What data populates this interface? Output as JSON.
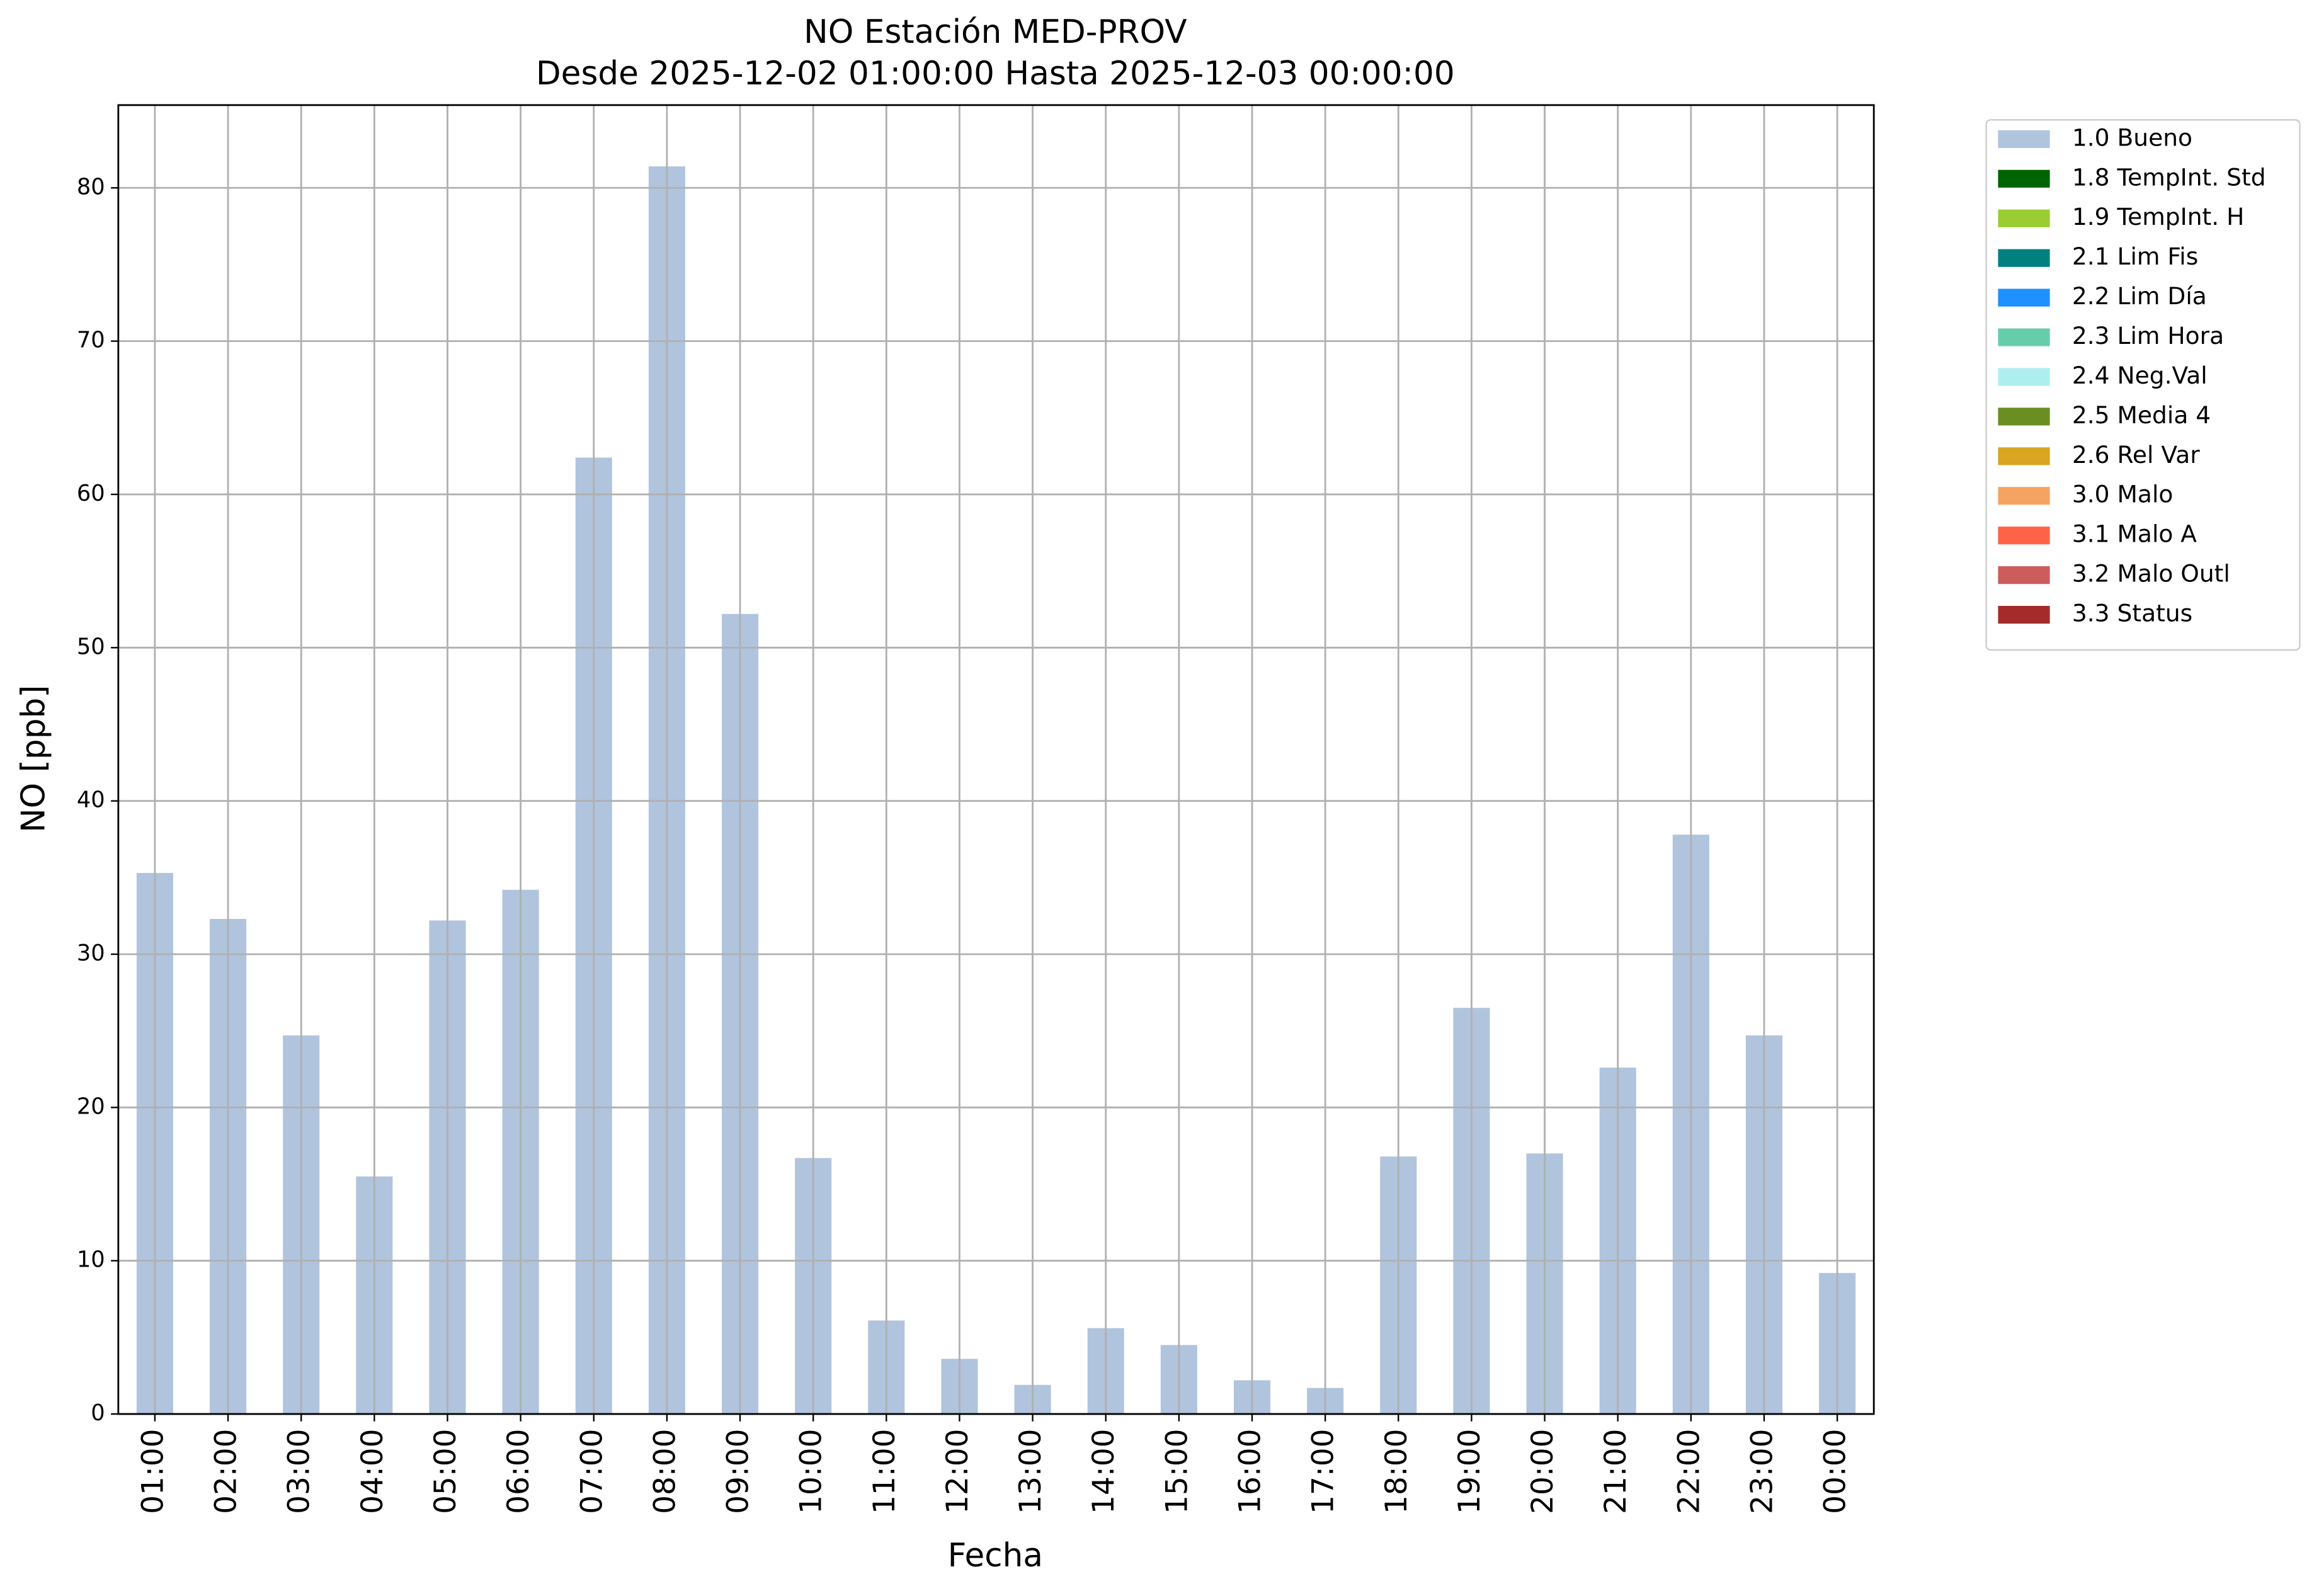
{
  "chart_data": {
    "type": "bar",
    "title": "NO Estación MED-PROV",
    "subtitle": "Desde 2025-12-02 01:00:00 Hasta 2025-12-03 00:00:00",
    "x_label": "Fecha",
    "y_label": "NO [ppb]",
    "categories": [
      "01:00",
      "02:00",
      "03:00",
      "04:00",
      "05:00",
      "06:00",
      "07:00",
      "08:00",
      "09:00",
      "10:00",
      "11:00",
      "12:00",
      "13:00",
      "14:00",
      "15:00",
      "16:00",
      "17:00",
      "18:00",
      "19:00",
      "20:00",
      "21:00",
      "22:00",
      "23:00",
      "00:00"
    ],
    "series": [
      {
        "name": "1.0 Bueno",
        "color": "#b0c4de",
        "values": [
          35.3,
          32.3,
          24.7,
          15.5,
          32.2,
          34.2,
          62.4,
          81.4,
          52.2,
          16.7,
          6.1,
          3.6,
          1.9,
          5.6,
          4.5,
          2.2,
          1.7,
          16.8,
          26.5,
          17.0,
          22.6,
          37.8,
          24.7,
          9.2
        ]
      },
      {
        "name": "1.8 TempInt. Std",
        "color": "#006400"
      },
      {
        "name": "1.9 TempInt. H",
        "color": "#9acd32"
      },
      {
        "name": "2.1 Lim Fis",
        "color": "#008080"
      },
      {
        "name": "2.2 Lim Día",
        "color": "#1e90ff"
      },
      {
        "name": "2.3 Lim Hora",
        "color": "#66cdaa"
      },
      {
        "name": "2.4 Neg.Val",
        "color": "#afeeee"
      },
      {
        "name": "2.5 Media 4",
        "color": "#6b8e23"
      },
      {
        "name": "2.6 Rel Var",
        "color": "#daa520"
      },
      {
        "name": "3.0 Malo",
        "color": "#f4a460"
      },
      {
        "name": "3.1 Malo A",
        "color": "#ff6347"
      },
      {
        "name": "3.2 Malo Outl",
        "color": "#cd5c5c"
      },
      {
        "name": "3.3 Status",
        "color": "#a52a2a"
      }
    ],
    "ylim": [
      0,
      85.4
    ],
    "yticks": [
      0,
      10,
      20,
      30,
      40,
      50,
      60,
      70,
      80
    ],
    "grid": true,
    "legend": "outside-upper-right"
  }
}
